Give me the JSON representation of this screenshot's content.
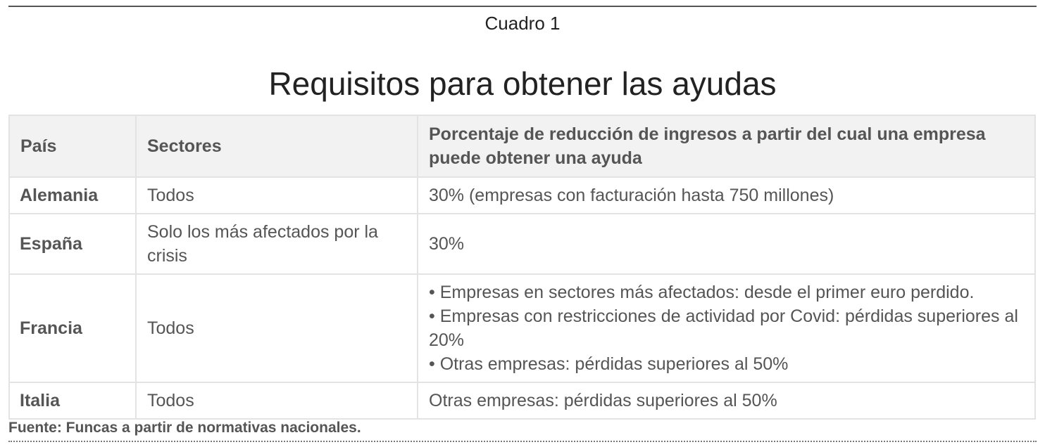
{
  "caption": "Cuadro 1",
  "title": "Requisitos para obtener las ayudas",
  "table": {
    "headers": [
      "País",
      "Sectores",
      "Porcentaje de reducción de ingresos a partir del cual una empresa puede obtener una ayuda"
    ],
    "rows": [
      {
        "country": "Alemania",
        "sectors": "Todos",
        "threshold": "30% (empresas con facturación hasta 750 millones)"
      },
      {
        "country": "España",
        "sectors": "Solo los más afectados por la crisis",
        "threshold": "30%"
      },
      {
        "country": "Francia",
        "sectors": "Todos",
        "threshold_items": [
          "Empresas en sectores más afectados: desde el primer euro perdido.",
          "Empresas con restricciones de actividad por Covid: pérdidas superiores al 20%",
          "Otras empresas: pérdidas superiores al 50%"
        ]
      },
      {
        "country": "Italia",
        "sectors": "Todos",
        "threshold": "Otras empresas: pérdidas superiores al 50%"
      }
    ]
  },
  "source": "Fuente: Funcas a partir de normativas nacionales."
}
